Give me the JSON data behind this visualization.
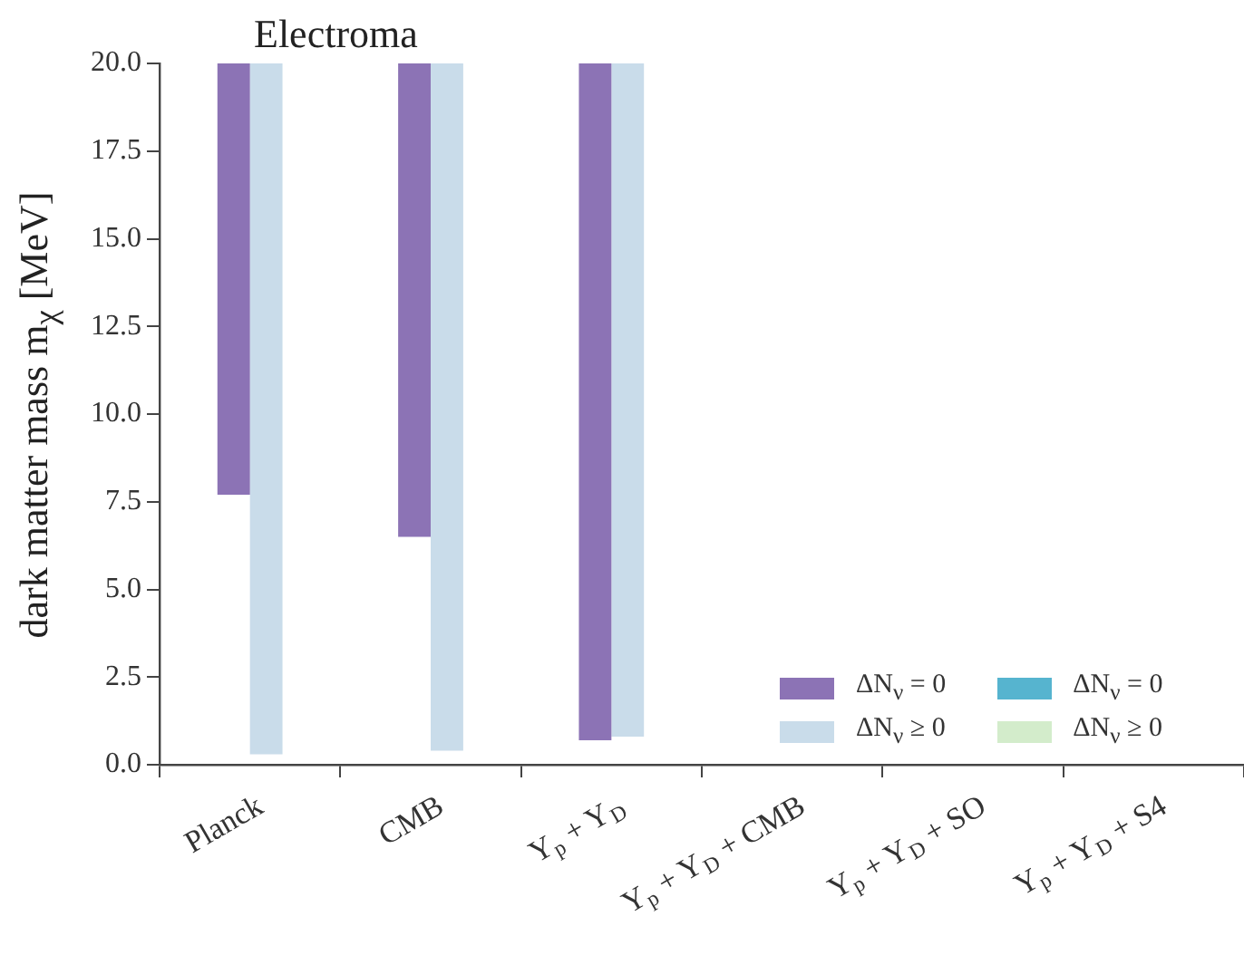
{
  "chart_data": {
    "type": "bar",
    "title": "Electroma",
    "ylabel": "dark matter mass m$_{χ}$ [MeV]",
    "categories": [
      "Planck",
      "CMB",
      "Y$_{p}$ + Y$_{D}$",
      "Y$_{p}$ + Y$_{D}$ + CMB",
      "Y$_{p}$ + Y$_{D}$ + SO",
      "Y$_{p}$ + Y$_{D}$ + S4"
    ],
    "series": [
      {
        "name": "ΔN$_{ν}$ = 0",
        "color": "#8c73b5",
        "base": [
          7.7,
          6.5,
          0.7,
          null,
          null,
          null
        ],
        "values": [
          12.3,
          13.5,
          19.3,
          null,
          null,
          null
        ]
      },
      {
        "name": "ΔN$_{ν}$ ≥ 0",
        "color": "#c9dcea",
        "base": [
          0.3,
          0.4,
          0.8,
          null,
          null,
          null
        ],
        "values": [
          19.7,
          19.6,
          19.2,
          null,
          null,
          null
        ]
      },
      {
        "name": "ΔN$_{ν}$ = 0",
        "color": "#56b4cf",
        "base": [
          null,
          null,
          null,
          null,
          null,
          null
        ],
        "values": [
          null,
          null,
          null,
          null,
          null,
          null
        ]
      },
      {
        "name": "ΔN$_{ν}$ ≥ 0",
        "color": "#d3eccb",
        "base": [
          null,
          null,
          null,
          null,
          null,
          null
        ],
        "values": [
          null,
          null,
          null,
          null,
          null,
          null
        ]
      }
    ],
    "ylim": [
      0,
      20
    ],
    "yticks": [
      {
        "value": 0,
        "label": "0.0"
      },
      {
        "value": 2.5,
        "label": "2.5"
      },
      {
        "value": 5,
        "label": "5.0"
      },
      {
        "value": 7.5,
        "label": "7.5"
      },
      {
        "value": 10,
        "label": "10.0"
      },
      {
        "value": 12.5,
        "label": "12.5"
      },
      {
        "value": 15,
        "label": "15.0"
      },
      {
        "value": 17.5,
        "label": "17.5"
      },
      {
        "value": 20,
        "label": "20.0"
      }
    ],
    "grid": false,
    "legend": "bottom right"
  }
}
